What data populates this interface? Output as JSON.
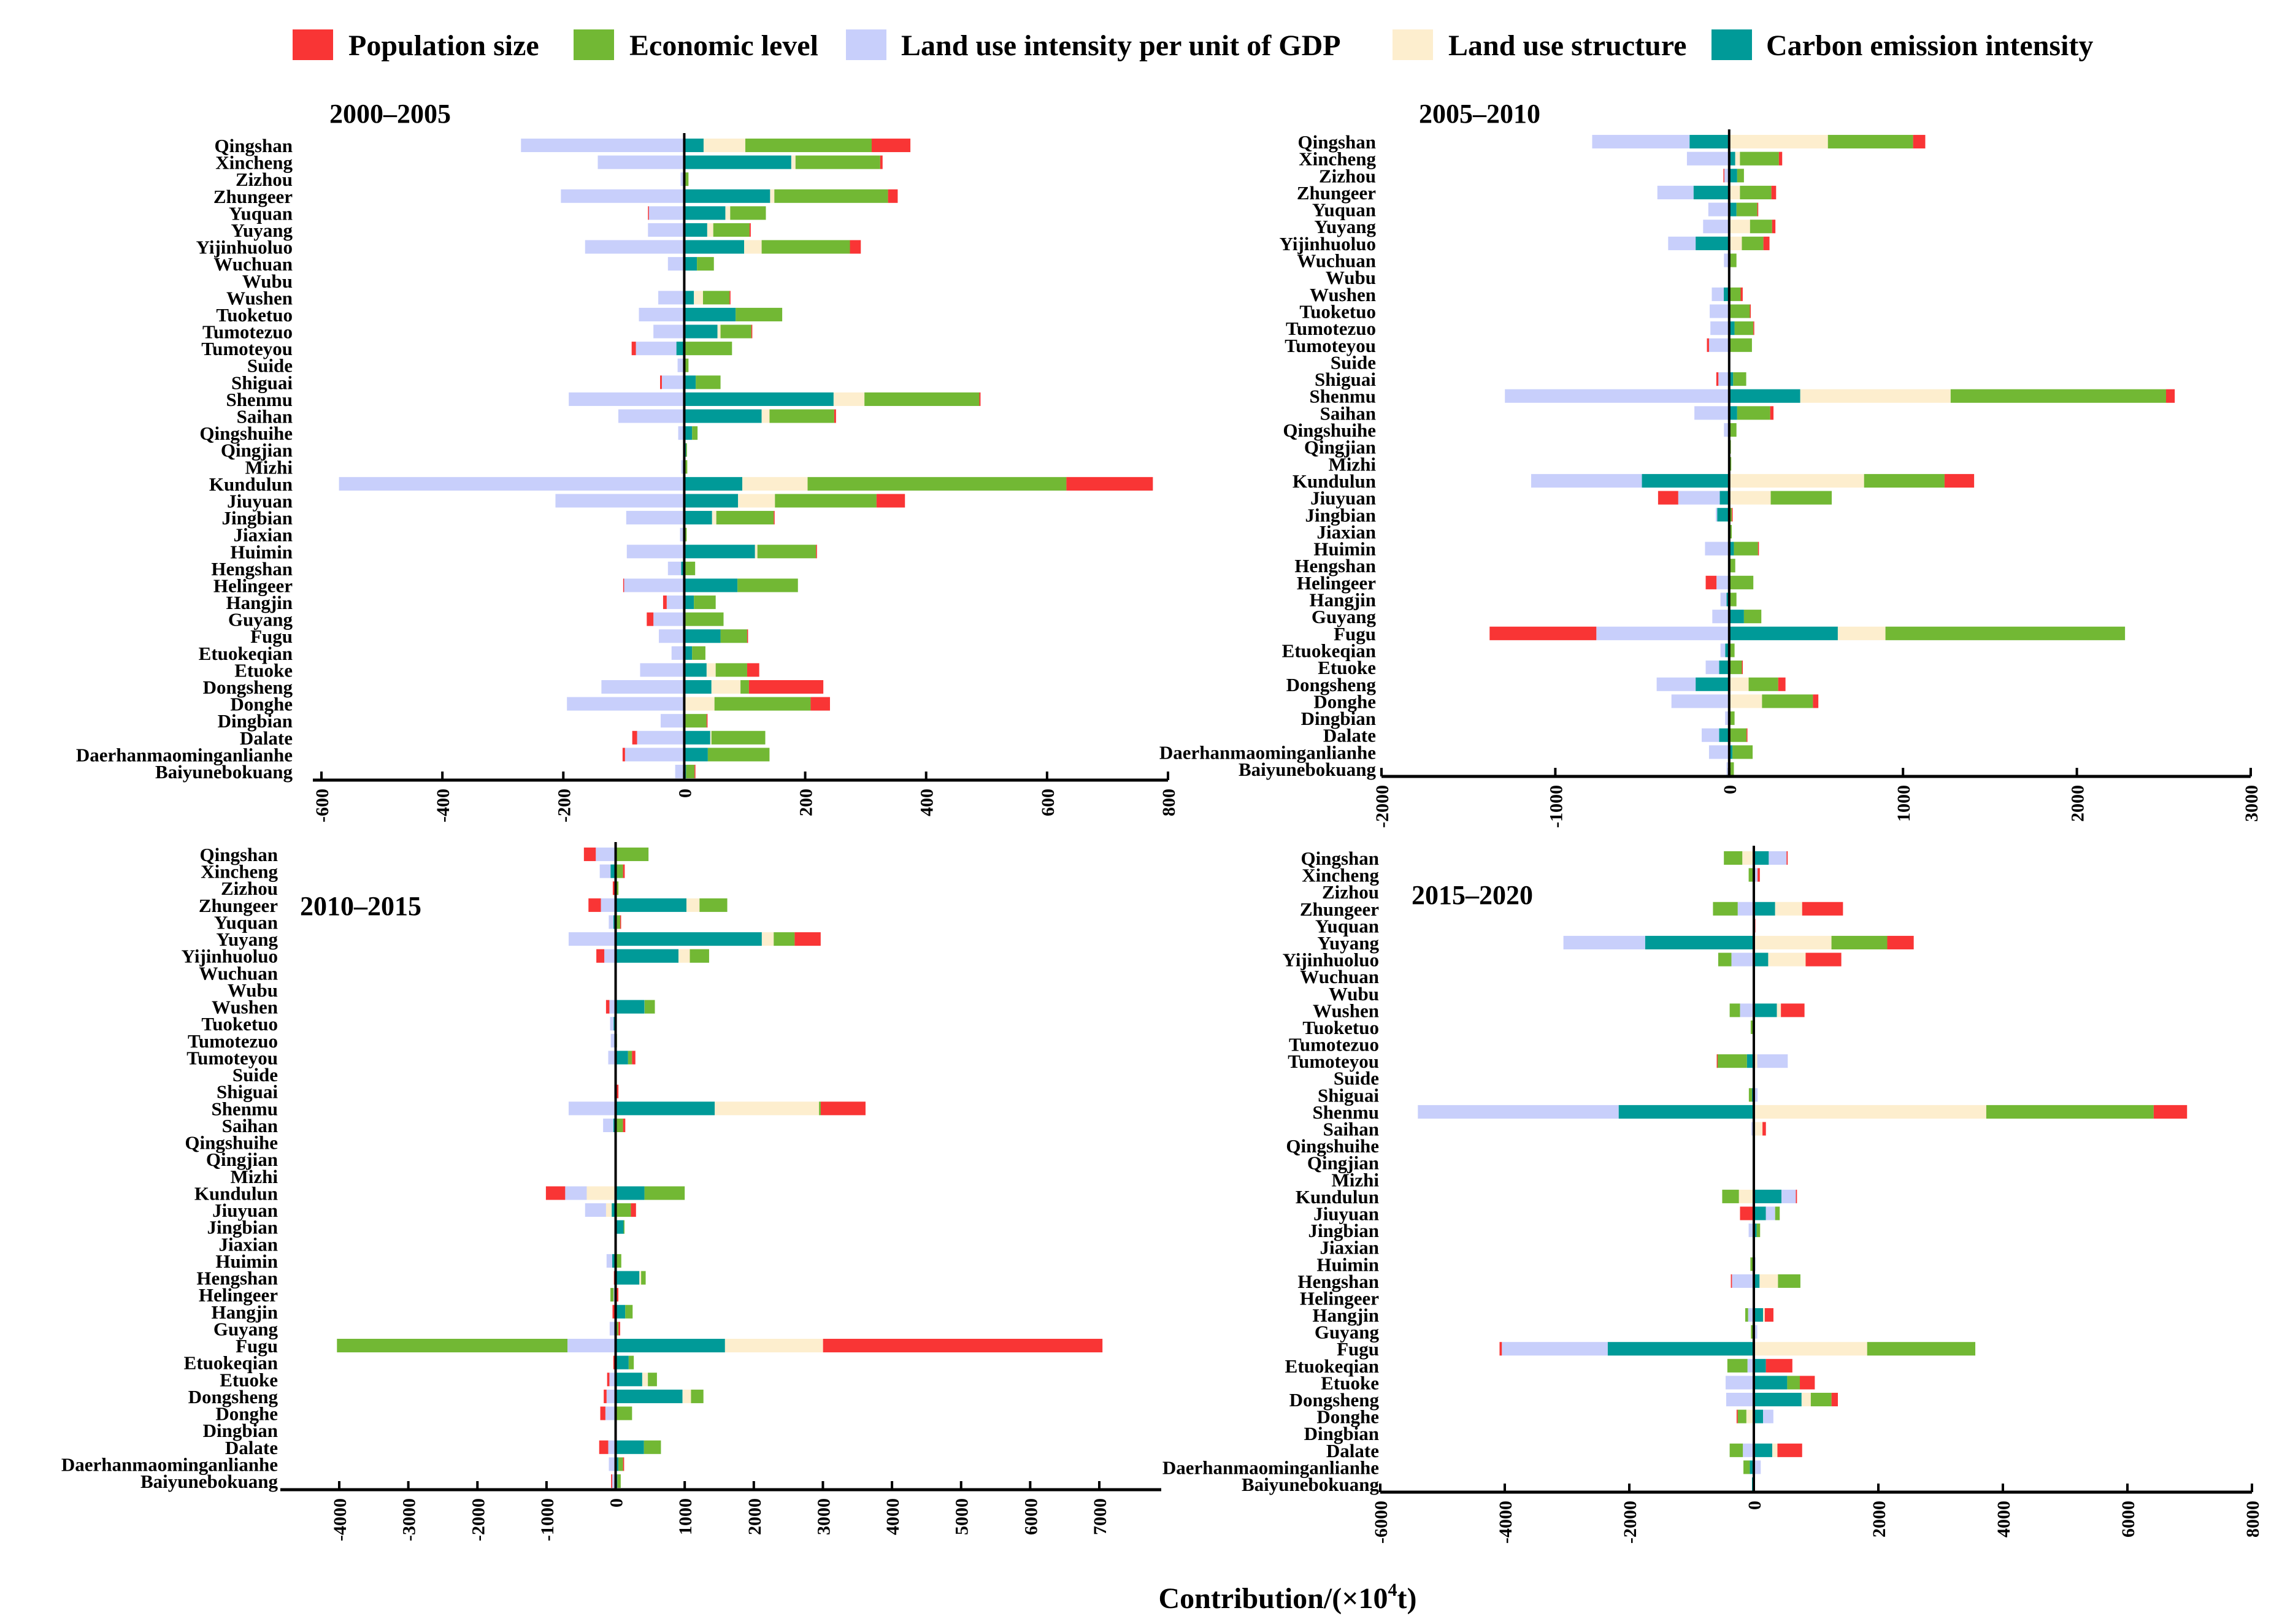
{
  "legend": [
    {
      "name": "Population size",
      "color": "#f93535"
    },
    {
      "name": "Economic level",
      "color": "#72b834"
    },
    {
      "name": "Land use intensity per unit of GDP",
      "color": "#c8cffb"
    },
    {
      "name": "Land use structure",
      "color": "#fdeece"
    },
    {
      "name": "Carbon emission intensity",
      "color": "#009a98"
    }
  ],
  "xlabel": "Contribution/(×10",
  "xlabel_sup": "4",
  "xlabel_end": "t)",
  "chart_data": [
    {
      "type": "bar",
      "orientation": "horizontal-stacked-diverging",
      "title": "2000–2005",
      "xlim": [
        -600,
        800
      ],
      "xticks": [
        -600,
        -400,
        -200,
        0,
        200,
        400,
        600,
        800
      ],
      "categories": [
        "Qingshan",
        "Xincheng",
        "Zizhou",
        "Zhungeer",
        "Yuquan",
        "Yuyang",
        "Yijinhuoluo",
        "Wuchuan",
        "Wubu",
        "Wushen",
        "Tuoketuo",
        "Tumotezuo",
        "Tumoteyou",
        "Suide",
        "Shiguai",
        "Shenmu",
        "Saihan",
        "Qingshuihe",
        "Qingjian",
        "Mizhi",
        "Kundulun",
        "Jiuyuan",
        "Jingbian",
        "Jiaxian",
        "Huimin",
        "Hengshan",
        "Helingeer",
        "Hangjin",
        "Guyang",
        "Fugu",
        "Etuokeqian",
        "Etuoke",
        "Dongsheng",
        "Donghe",
        "Dingbian",
        "Dalate",
        "Daerhanmaominganlianhe",
        "Baiyunebokuang"
      ],
      "series": [
        {
          "name": "Population size",
          "values": [
            64,
            4,
            0,
            16,
            -1,
            2,
            18,
            0,
            0,
            1,
            0,
            1,
            -7,
            0,
            -3,
            2,
            3,
            0,
            0,
            0,
            143,
            47,
            1,
            0,
            1,
            0,
            -1,
            -6,
            -11,
            1,
            0,
            20,
            123,
            32,
            1,
            -8,
            -4,
            1
          ]
        },
        {
          "name": "Economic level",
          "values": [
            209,
            140,
            7,
            188,
            59,
            60,
            146,
            28,
            1,
            44,
            77,
            51,
            79,
            7,
            41,
            190,
            107,
            9,
            1,
            5,
            428,
            168,
            95,
            4,
            97,
            18,
            100,
            36,
            63,
            44,
            22,
            52,
            14,
            159,
            37,
            89,
            102,
            14
          ]
        },
        {
          "name": "Land use intensity per unit of GDP",
          "values": [
            -270,
            -143,
            -6,
            -204,
            -59,
            -60,
            -164,
            -27,
            -1,
            -43,
            -75,
            -51,
            -67,
            -11,
            -37,
            -191,
            -109,
            -10,
            -2,
            -5,
            -571,
            -213,
            -96,
            -7,
            -95,
            -22,
            -100,
            -29,
            -51,
            -42,
            -21,
            -73,
            -137,
            -194,
            -39,
            -78,
            -98,
            -15
          ]
        },
        {
          "name": "Land use structure",
          "values": [
            69,
            7,
            0,
            7,
            8,
            10,
            29,
            0,
            0,
            15,
            0,
            5,
            0,
            0,
            0,
            51,
            13,
            0,
            0,
            0,
            108,
            61,
            7,
            0,
            4,
            0,
            0,
            0,
            0,
            0,
            0,
            15,
            48,
            50,
            0,
            2,
            0,
            0
          ]
        },
        {
          "name": "Carbon emission intensity",
          "values": [
            32,
            177,
            0,
            142,
            68,
            38,
            99,
            21,
            0,
            16,
            85,
            55,
            -13,
            0,
            19,
            247,
            128,
            13,
            3,
            0,
            96,
            89,
            46,
            0,
            117,
            -5,
            88,
            16,
            2,
            60,
            13,
            37,
            45,
            0,
            0,
            43,
            39,
            3
          ]
        }
      ]
    },
    {
      "type": "bar",
      "orientation": "horizontal-stacked-diverging",
      "title": "2005–2010",
      "xlim": [
        -2000,
        3000
      ],
      "xticks": [
        -2000,
        -1000,
        0,
        1000,
        2000,
        3000
      ],
      "categories": [
        "Qingshan",
        "Xincheng",
        "Zizhou",
        "Zhungeer",
        "Yuquan",
        "Yuyang",
        "Yijinhuoluo",
        "Wuchuan",
        "Wubu",
        "Wushen",
        "Tuoketuo",
        "Tumotezuo",
        "Tumoteyou",
        "Suide",
        "Shiguai",
        "Shenmu",
        "Saihan",
        "Qingshuihe",
        "Qingjian",
        "Mizhi",
        "Kundulun",
        "Jiuyuan",
        "Jingbian",
        "Jiaxian",
        "Huimin",
        "Hengshan",
        "Helingeer",
        "Hangjin",
        "Guyang",
        "Fugu",
        "Etuokeqian",
        "Etuoke",
        "Dongsheng",
        "Donghe",
        "Dingbian",
        "Dalate",
        "Daerhanmaominganlianhe",
        "Baiyunebokuang"
      ],
      "series": [
        {
          "name": "Population size",
          "values": [
            70,
            19,
            -3,
            27,
            2,
            19,
            35,
            0,
            0,
            12,
            4,
            4,
            -12,
            0,
            -12,
            50,
            19,
            0,
            0,
            0,
            170,
            -116,
            2,
            0,
            2,
            0,
            -62,
            0,
            0,
            -614,
            0,
            3,
            42,
            31,
            0,
            2,
            0,
            0
          ]
        },
        {
          "name": "Economic level",
          "values": [
            490,
            224,
            39,
            181,
            120,
            127,
            124,
            42,
            0,
            66,
            116,
            108,
            131,
            2,
            75,
            1239,
            190,
            42,
            10,
            12,
            463,
            351,
            15,
            15,
            139,
            35,
            139,
            42,
            100,
            1378,
            31,
            73,
            170,
            293,
            31,
            100,
            116,
            27
          ]
        },
        {
          "name": "Land use intensity per unit of GDP",
          "values": [
            -560,
            -243,
            -30,
            -208,
            -120,
            -150,
            -158,
            -30,
            0,
            -69,
            -112,
            -108,
            -116,
            -2,
            -62,
            -1290,
            -200,
            -30,
            0,
            0,
            -637,
            -239,
            -8,
            0,
            -139,
            0,
            -73,
            -35,
            -97,
            -764,
            -27,
            -77,
            -224,
            -332,
            -23,
            -100,
            -116,
            -15
          ]
        },
        {
          "name": "Land use structure",
          "values": [
            568,
            27,
            0,
            62,
            0,
            120,
            73,
            0,
            0,
            0,
            3,
            0,
            0,
            0,
            0,
            865,
            0,
            0,
            0,
            0,
            776,
            239,
            0,
            0,
            0,
            0,
            0,
            0,
            0,
            274,
            0,
            0,
            112,
            189,
            0,
            0,
            0,
            0
          ]
        },
        {
          "name": "Carbon emission intensity",
          "values": [
            -228,
            35,
            46,
            -205,
            42,
            0,
            -193,
            0,
            0,
            -31,
            0,
            31,
            0,
            0,
            23,
            409,
            46,
            0,
            0,
            0,
            -502,
            -54,
            -69,
            0,
            27,
            0,
            0,
            -15,
            85,
            625,
            -23,
            -58,
            -193,
            0,
            0,
            -58,
            19,
            0
          ]
        }
      ]
    },
    {
      "type": "bar",
      "orientation": "horizontal-stacked-diverging",
      "title": "2010–2015",
      "xlim": [
        -4000,
        7000
      ],
      "xticks": [
        -4000,
        -3000,
        -2000,
        -1000,
        0,
        1000,
        2000,
        3000,
        4000,
        5000,
        6000,
        7000
      ],
      "categories": [
        "Qingshan",
        "Xincheng",
        "Zizhou",
        "Zhungeer",
        "Yuquan",
        "Yuyang",
        "Yijinhuoluo",
        "Wuchuan",
        "Wubu",
        "Wushen",
        "Tuoketuo",
        "Tumotezuo",
        "Tumoteyou",
        "Suide",
        "Shiguai",
        "Shenmu",
        "Saihan",
        "Qingshuihe",
        "Qingjian",
        "Mizhi",
        "Kundulun",
        "Jiuyuan",
        "Jingbian",
        "Jiaxian",
        "Huimin",
        "Hengshan",
        "Helingeer",
        "Hangjin",
        "Guyang",
        "Fugu",
        "Etuokeqian",
        "Etuoke",
        "Dongsheng",
        "Donghe",
        "Dingbian",
        "Dalate",
        "Daerhanmaominganlianhe",
        "Baiyunebokuang"
      ],
      "series": [
        {
          "name": "Population size",
          "values": [
            -172,
            25,
            -25,
            -180,
            2,
            377,
            -115,
            0,
            0,
            -49,
            0,
            0,
            49,
            0,
            41,
            648,
            33,
            0,
            0,
            0,
            -279,
            74,
            0,
            0,
            0,
            -25,
            40,
            -45,
            25,
            4044,
            -33,
            -33,
            -41,
            -74,
            0,
            -131,
            16,
            -16
          ]
        },
        {
          "name": "Economic level",
          "values": [
            476,
            107,
            41,
            402,
            66,
            303,
            279,
            0,
            0,
            148,
            0,
            20,
            57,
            0,
            0,
            25,
            107,
            0,
            0,
            5,
            582,
            221,
            10,
            0,
            82,
            66,
            -45,
            107,
            41,
            -3336,
            74,
            131,
            180,
            238,
            0,
            246,
            66,
            49
          ]
        },
        {
          "name": "Land use intensity per unit of GDP",
          "values": [
            -287,
            -156,
            -16,
            -213,
            -66,
            -680,
            -164,
            -5,
            0,
            -90,
            -50,
            -50,
            -107,
            0,
            -20,
            -680,
            -148,
            0,
            0,
            0,
            -312,
            -303,
            0,
            0,
            -82,
            0,
            -20,
            0,
            -66,
            -697,
            0,
            -90,
            -131,
            -148,
            0,
            -107,
            -98,
            -49
          ]
        },
        {
          "name": "Land use structure",
          "values": [
            0,
            0,
            0,
            189,
            0,
            172,
            164,
            0,
            0,
            2,
            0,
            0,
            0,
            0,
            0,
            1509,
            0,
            0,
            0,
            0,
            -418,
            -82,
            0,
            0,
            0,
            25,
            0,
            0,
            0,
            1419,
            0,
            82,
            123,
            0,
            0,
            0,
            0,
            0
          ]
        },
        {
          "name": "Carbon emission intensity",
          "values": [
            0,
            -74,
            0,
            1025,
            -33,
            2116,
            910,
            0,
            0,
            418,
            -30,
            -20,
            180,
            0,
            0,
            1435,
            -33,
            0,
            0,
            0,
            418,
            -57,
            115,
            0,
            -49,
            344,
            -10,
            139,
            -20,
            1583,
            189,
            385,
            968,
            0,
            0,
            410,
            41,
            25
          ]
        }
      ]
    },
    {
      "type": "bar",
      "orientation": "horizontal-stacked-diverging",
      "title": "2015–2020",
      "xlim": [
        -6000,
        8000
      ],
      "xticks": [
        -6000,
        -4000,
        -2000,
        0,
        2000,
        4000,
        6000,
        8000
      ],
      "categories": [
        "Qingshan",
        "Xincheng",
        "Zizhou",
        "Zhungeer",
        "Yuquan",
        "Yuyang",
        "Yijinhuoluo",
        "Wuchuan",
        "Wubu",
        "Wushen",
        "Tuoketuo",
        "Tumotezuo",
        "Tumoteyou",
        "Suide",
        "Shiguai",
        "Shenmu",
        "Saihan",
        "Qingshuihe",
        "Qingjian",
        "Mizhi",
        "Kundulun",
        "Jiuyuan",
        "Jingbian",
        "Jiaxian",
        "Huimin",
        "Hengshan",
        "Helingeer",
        "Hangjin",
        "Guyang",
        "Fugu",
        "Etuokeqian",
        "Etuoke",
        "Dongsheng",
        "Donghe",
        "Dingbian",
        "Dalate",
        "Daerhanmaominganlianhe",
        "Baiyunebokuang"
      ],
      "series": [
        {
          "name": "Population size",
          "values": [
            18,
            37,
            -10,
            656,
            25,
            425,
            573,
            0,
            0,
            379,
            0,
            0,
            -5,
            0,
            0,
            536,
            55,
            0,
            0,
            0,
            18,
            -222,
            0,
            0,
            0,
            -18,
            0,
            139,
            0,
            -37,
            425,
            240,
            102,
            -18,
            0,
            397,
            0,
            0
          ]
        },
        {
          "name": "Economic level",
          "values": [
            -296,
            -83,
            20,
            -397,
            0,
            896,
            -212,
            0,
            0,
            -166,
            -50,
            0,
            -480,
            0,
            -50,
            2689,
            0,
            0,
            0,
            0,
            -268,
            74,
            55,
            0,
            -55,
            360,
            10,
            -46,
            -46,
            1737,
            -323,
            203,
            333,
            -139,
            0,
            -212,
            -102,
            0
          ]
        },
        {
          "name": "Land use intensity per unit of GDP",
          "values": [
            286,
            60,
            0,
            -259,
            0,
            -1312,
            -360,
            0,
            0,
            -222,
            0,
            5,
            490,
            0,
            60,
            -3225,
            -40,
            0,
            0,
            0,
            231,
            148,
            -83,
            0,
            28,
            -351,
            0,
            -92,
            55,
            -1700,
            -102,
            -453,
            -444,
            166,
            0,
            -176,
            111,
            0
          ]
        },
        {
          "name": "Land use structure",
          "values": [
            -185,
            0,
            0,
            434,
            0,
            1247,
            601,
            0,
            0,
            65,
            0,
            0,
            55,
            0,
            0,
            3733,
            139,
            0,
            0,
            0,
            -240,
            0,
            0,
            0,
            0,
            296,
            0,
            28,
            0,
            1820,
            0,
            0,
            148,
            -120,
            0,
            83,
            0,
            0
          ]
        },
        {
          "name": "Carbon emission intensity",
          "values": [
            240,
            0,
            0,
            342,
            -15,
            -1746,
            231,
            0,
            0,
            370,
            0,
            0,
            -111,
            0,
            -30,
            -2171,
            0,
            0,
            0,
            0,
            444,
            194,
            46,
            0,
            0,
            92,
            0,
            148,
            0,
            -2347,
            194,
            536,
            767,
            148,
            0,
            296,
            -65,
            -30
          ]
        }
      ]
    }
  ]
}
